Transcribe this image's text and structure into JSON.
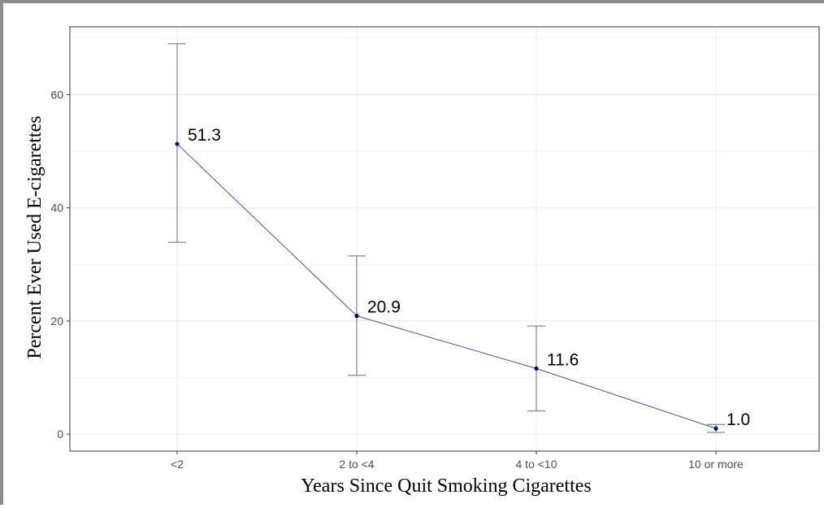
{
  "chart_data": {
    "type": "line",
    "title": "",
    "xlabel": "Years Since Quit Smoking Cigarettes",
    "ylabel": "Percent Ever Used E-cigarettes",
    "categories": [
      "<2",
      "2 to <4",
      "4 to <10",
      "10 or more"
    ],
    "values": [
      51.3,
      20.9,
      11.6,
      1.0
    ],
    "value_labels": [
      "51.3",
      "20.9",
      "11.6",
      "1.0"
    ],
    "error_low": [
      33.9,
      10.4,
      4.1,
      0.3
    ],
    "error_high": [
      69.0,
      31.5,
      19.1,
      1.7
    ],
    "ylim": [
      -3,
      72
    ],
    "yticks": [
      0,
      20,
      40,
      60
    ],
    "ytick_labels": [
      "0",
      "20",
      "40",
      "60"
    ],
    "grid": true,
    "colors": {
      "line": "#4b4ba6",
      "point": "#0a0a6e",
      "errorbar": "#5c6aa3",
      "grid": "#ebebeb",
      "panel_border": "#333333"
    }
  }
}
